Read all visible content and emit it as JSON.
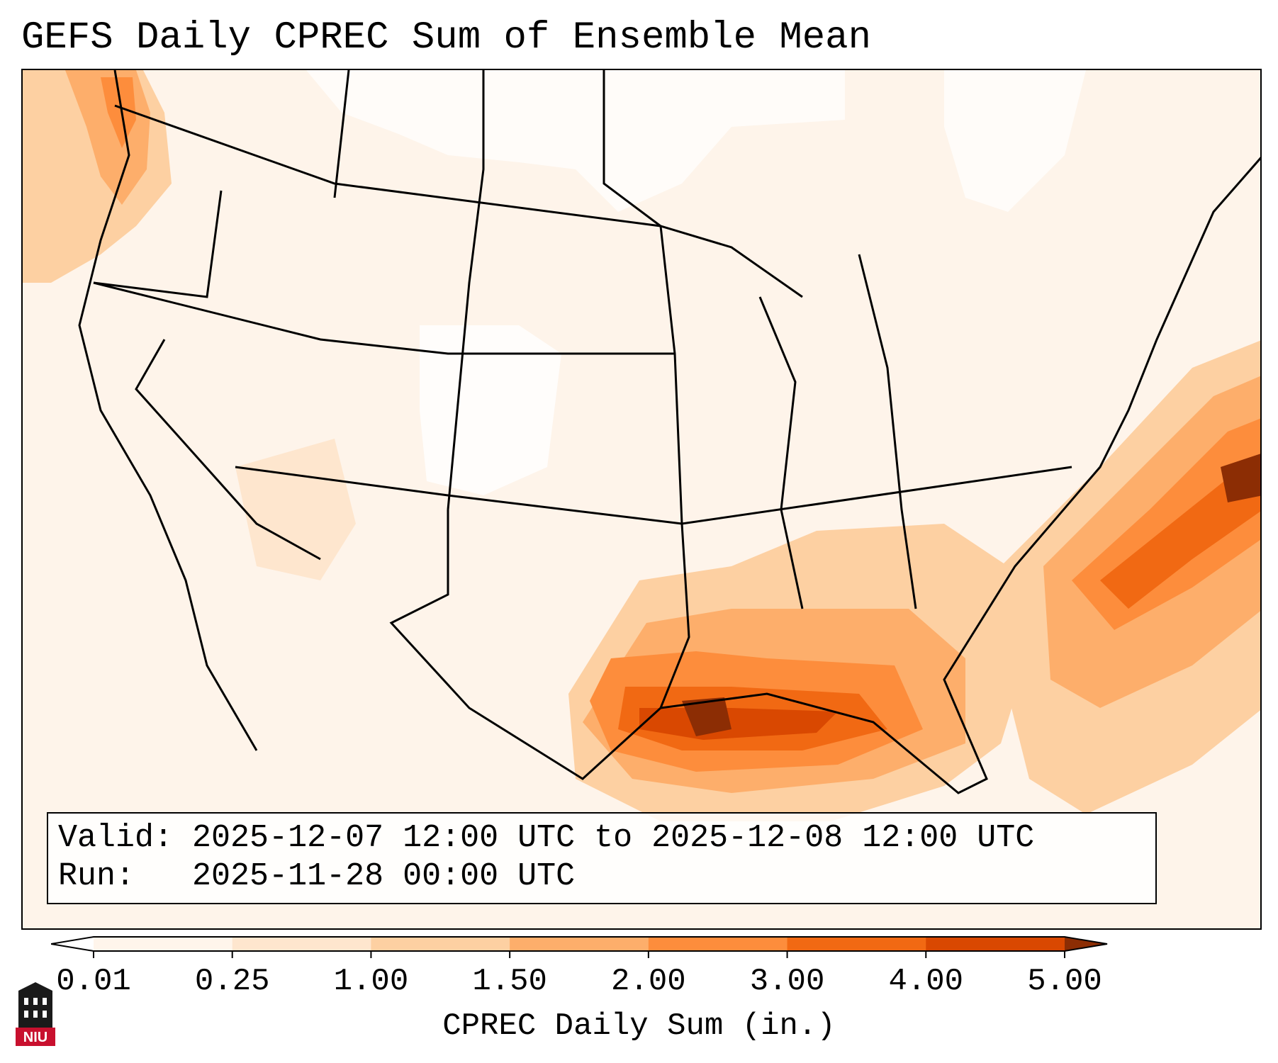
{
  "title": "GEFS Daily CPREC Sum of Ensemble Mean",
  "info": {
    "valid_label": "Valid:",
    "valid_value": "2025-12-07 12:00 UTC to 2025-12-08 12:00 UTC",
    "run_label": "Run:",
    "run_value": "2025-11-28 00:00 UTC"
  },
  "colorbar": {
    "label": "CPREC Daily Sum (in.)",
    "ticks": [
      "0.01",
      "0.25",
      "1.00",
      "1.50",
      "2.00",
      "3.00",
      "4.00",
      "5.00"
    ],
    "colors": [
      "#fff5eb",
      "#fee6ce",
      "#fdd0a2",
      "#fdae6b",
      "#fd8d3c",
      "#f16913",
      "#d94801",
      "#8c2d04"
    ]
  },
  "logo": {
    "text": "NIU",
    "color": "#c8102e"
  }
}
